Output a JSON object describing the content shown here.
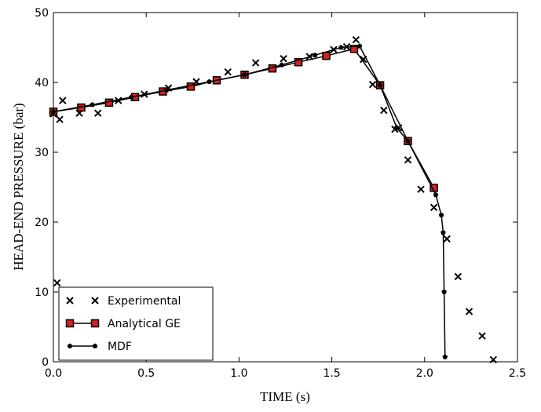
{
  "chart_data": {
    "type": "line",
    "x_label": "TIME (s)",
    "y_label": "HEAD-END PRESSURE (bar)",
    "xlim": [
      0,
      2.5
    ],
    "ylim": [
      0,
      50
    ],
    "xticks": [
      {
        "value": 0,
        "label": "0.0"
      },
      0.5,
      {
        "value": 1,
        "label": "1.0"
      },
      1.5,
      {
        "value": 2,
        "label": "2.0"
      },
      2.5
    ],
    "yticks": [
      0,
      10,
      20,
      30,
      40,
      50
    ],
    "grid": false,
    "legend": "lower left",
    "series": [
      {
        "name": "Experimental",
        "color": "#000000",
        "marker": "x",
        "line": false,
        "x": [
          0.02,
          0.0,
          0.034,
          0.05,
          0.14,
          0.24,
          0.35,
          0.49,
          0.62,
          0.77,
          0.94,
          1.09,
          1.24,
          1.38,
          1.51,
          1.58,
          1.63,
          1.67,
          1.72,
          1.78,
          1.84,
          1.86,
          1.91,
          1.98,
          2.05,
          2.12,
          2.18,
          2.24,
          2.31,
          2.37
        ],
        "values": [
          11.3,
          35.5,
          34.7,
          37.4,
          35.6,
          35.6,
          37.4,
          38.3,
          39.2,
          40.1,
          41.5,
          42.8,
          43.4,
          43.7,
          44.7,
          45.1,
          46.1,
          43.3,
          39.7,
          36.0,
          33.3,
          33.5,
          28.9,
          24.7,
          22.1,
          17.6,
          12.2,
          7.2,
          3.7,
          0.3
        ]
      },
      {
        "name": "Analytical GE",
        "color": "#d62020",
        "marker": "s",
        "line": true,
        "x": [
          0.0,
          0.15,
          0.3,
          0.44,
          0.59,
          0.74,
          0.88,
          1.03,
          1.18,
          1.32,
          1.47,
          1.62,
          1.76,
          1.91,
          2.05
        ],
        "values": [
          35.8,
          36.4,
          37.1,
          37.9,
          38.7,
          39.4,
          40.3,
          41.1,
          42.0,
          42.9,
          43.8,
          44.8,
          39.6,
          31.6,
          24.9
        ]
      },
      {
        "name": "MDF",
        "color": "#000000",
        "marker": "p",
        "line": true,
        "x": [
          0.0,
          0.21,
          0.42,
          0.61,
          0.84,
          1.03,
          1.23,
          1.41,
          1.55,
          1.65,
          1.76,
          1.85,
          1.91,
          2.06,
          2.09,
          2.1,
          2.105,
          2.11
        ],
        "values": [
          35.8,
          36.8,
          37.9,
          38.9,
          40.1,
          41.1,
          42.5,
          43.9,
          45.0,
          45.2,
          39.6,
          33.5,
          31.6,
          23.9,
          21.0,
          18.5,
          10.0,
          0.7
        ]
      }
    ]
  }
}
